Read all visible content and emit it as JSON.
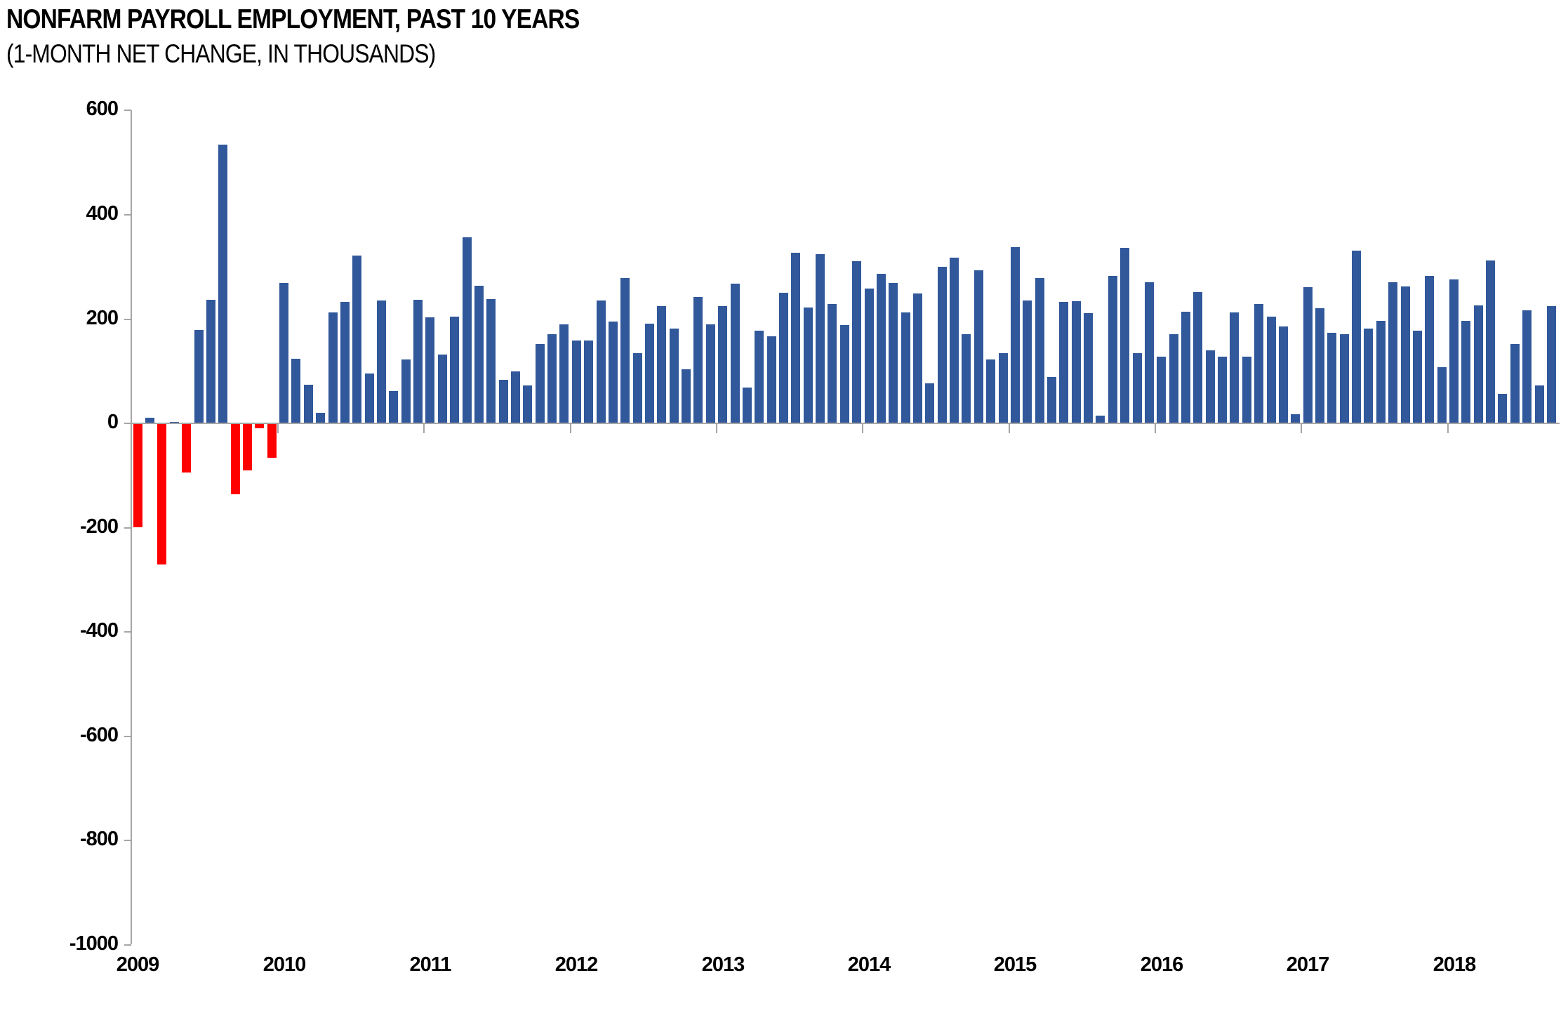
{
  "title": "NONFARM PAYROLL EMPLOYMENT, PAST 10 YEARS",
  "subtitle": "(1-MONTH NET CHANGE, IN THOUSANDS)",
  "chart_data": {
    "type": "bar",
    "title": "NONFARM PAYROLL EMPLOYMENT, PAST 10 YEARS",
    "subtitle": "(1-MONTH NET CHANGE, IN THOUSANDS)",
    "unit": "thousands of jobs, 1-month net change",
    "start_month": "January 2009",
    "end_month": "September 2018",
    "ylim": [
      -1000,
      600
    ],
    "y_ticks": [
      600,
      400,
      200,
      0,
      -200,
      -400,
      -600,
      -800,
      -1000
    ],
    "x_year_labels": [
      "2009",
      "2010",
      "2011",
      "2012",
      "2013",
      "2014",
      "2015",
      "2016",
      "2017",
      "2018"
    ],
    "grid": false,
    "legend": "none",
    "positive_color": "#30589B",
    "negative_color": "#FF0000",
    "axis_color": "#A6A6A6",
    "series_by_year": [
      {
        "year": "2009",
        "values": [
          -198,
          10,
          -270,
          2,
          -93,
          178,
          236,
          533,
          -135,
          -89,
          -8,
          -64
        ]
      },
      {
        "year": "2010",
        "values": [
          268,
          123,
          73,
          19,
          212,
          232,
          320,
          94,
          235,
          61,
          121,
          236
        ]
      },
      {
        "year": "2011",
        "values": [
          202,
          131,
          204,
          355,
          262,
          237,
          82,
          98,
          71,
          151,
          170,
          188
        ]
      },
      {
        "year": "2012",
        "values": [
          158,
          157,
          235,
          194,
          278,
          134,
          190,
          223,
          180,
          103,
          241,
          188
        ]
      },
      {
        "year": "2013",
        "values": [
          224,
          266,
          67,
          176,
          166,
          249,
          326,
          221,
          323,
          227,
          187,
          310
        ]
      },
      {
        "year": "2014",
        "values": [
          257,
          285,
          268,
          212,
          248,
          75,
          299,
          317,
          170,
          292,
          121,
          133
        ]
      },
      {
        "year": "2015",
        "values": [
          337,
          234,
          278,
          88,
          231,
          233,
          210,
          13,
          281,
          335,
          134,
          269
        ]
      },
      {
        "year": "2016",
        "values": [
          126,
          170,
          213,
          251,
          139,
          126,
          212,
          126,
          227,
          203,
          185,
          16
        ]
      },
      {
        "year": "2017",
        "values": [
          260,
          219,
          173,
          170,
          330,
          181,
          195,
          269,
          261,
          177,
          281,
          106
        ]
      },
      {
        "year": "2018",
        "values": [
          275,
          195,
          225,
          311,
          55,
          151,
          215,
          71,
          223
        ]
      }
    ]
  }
}
